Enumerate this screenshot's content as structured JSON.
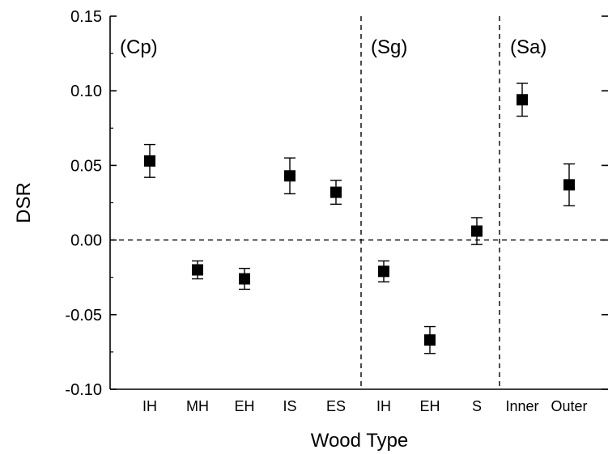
{
  "chart_data": {
    "type": "scatter",
    "xlabel": "Wood Type",
    "ylabel": "DSR",
    "ylim": [
      -0.1,
      0.15
    ],
    "yticks": [
      "-0.10",
      "-0.05",
      "0.00",
      "0.05",
      "0.10",
      "0.15"
    ],
    "categories": [
      "IH",
      "MH",
      "EH",
      "IS",
      "ES",
      "IH",
      "EH",
      "S",
      "Inner",
      "Outer"
    ],
    "groups": [
      {
        "label": "(Cp)",
        "categories": [
          "IH",
          "MH",
          "EH",
          "IS",
          "ES"
        ]
      },
      {
        "label": "(Sg)",
        "categories": [
          "IH",
          "EH",
          "S"
        ]
      },
      {
        "label": "(Sa)",
        "categories": [
          "Inner",
          "Outer"
        ]
      }
    ],
    "values": [
      0.053,
      -0.02,
      -0.026,
      0.043,
      0.032,
      -0.021,
      -0.067,
      0.006,
      0.094,
      0.037
    ],
    "errors": [
      0.011,
      0.006,
      0.007,
      0.012,
      0.008,
      0.007,
      0.009,
      0.009,
      0.011,
      0.014
    ],
    "reference_line_y": 0,
    "grid": false,
    "colors": {
      "marker": "#000000",
      "axis": "#000000"
    }
  }
}
